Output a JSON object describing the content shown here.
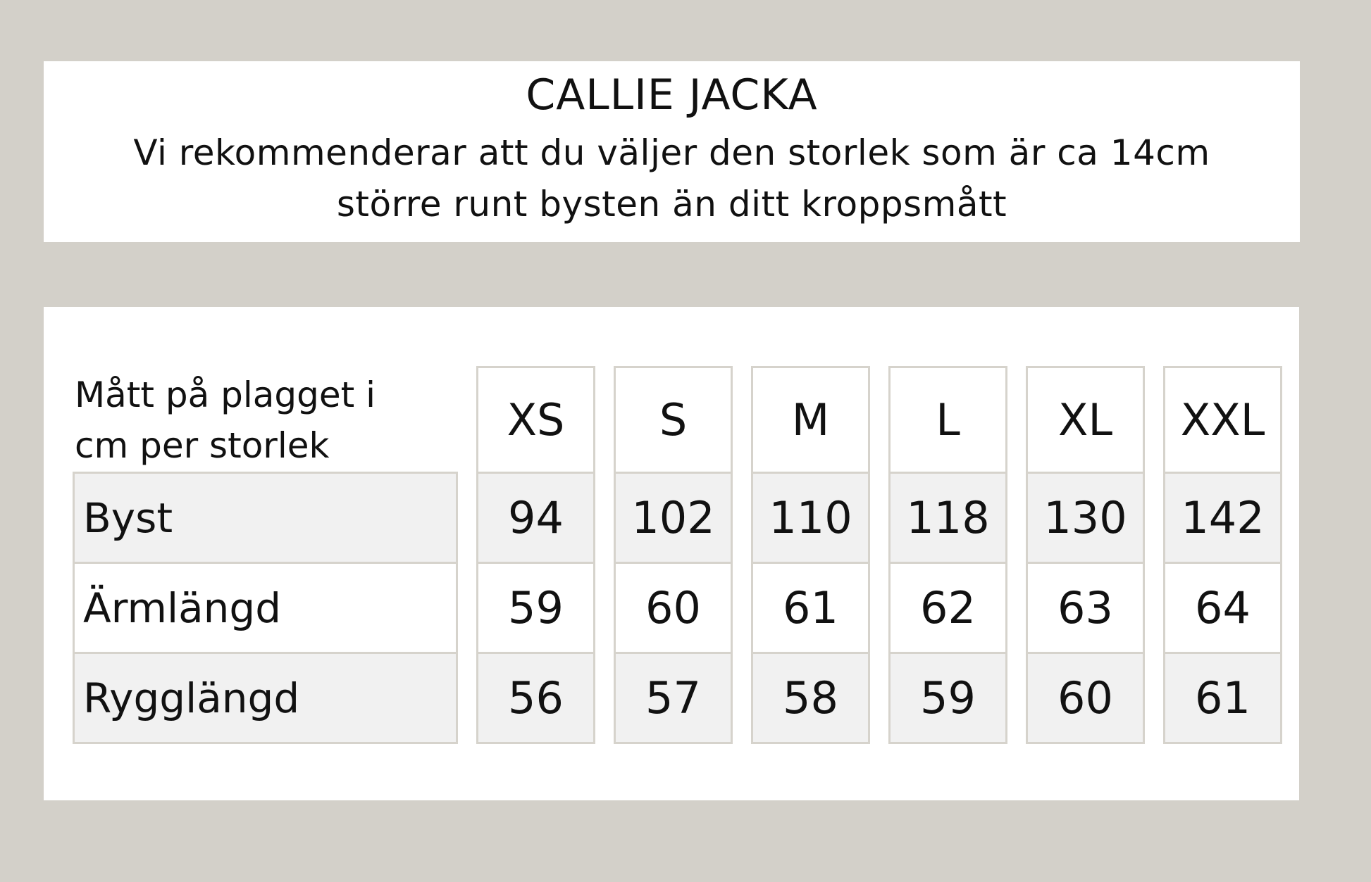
{
  "header": {
    "title": "CALLIE JACKA",
    "subtitle_line1": "Vi rekommenderar att du väljer den storlek som är ca 14cm",
    "subtitle_line2": "större runt bysten än ditt kroppsmått"
  },
  "table": {
    "corner_line1": "Mått på plagget i",
    "corner_line2": "cm per storlek",
    "sizes": [
      "XS",
      "S",
      "M",
      "L",
      "XL",
      "XXL"
    ],
    "rows": [
      {
        "label": "Byst",
        "values": [
          "94",
          "102",
          "110",
          "118",
          "130",
          "142"
        ]
      },
      {
        "label": "Ärmlängd",
        "values": [
          "59",
          "60",
          "61",
          "62",
          "63",
          "64"
        ]
      },
      {
        "label": "Rygglängd",
        "values": [
          "56",
          "57",
          "58",
          "59",
          "60",
          "61"
        ]
      }
    ]
  },
  "colors": {
    "background": "#d3d0c9",
    "border": "#d6d3cc",
    "shaded_row": "#f1f1f1"
  }
}
